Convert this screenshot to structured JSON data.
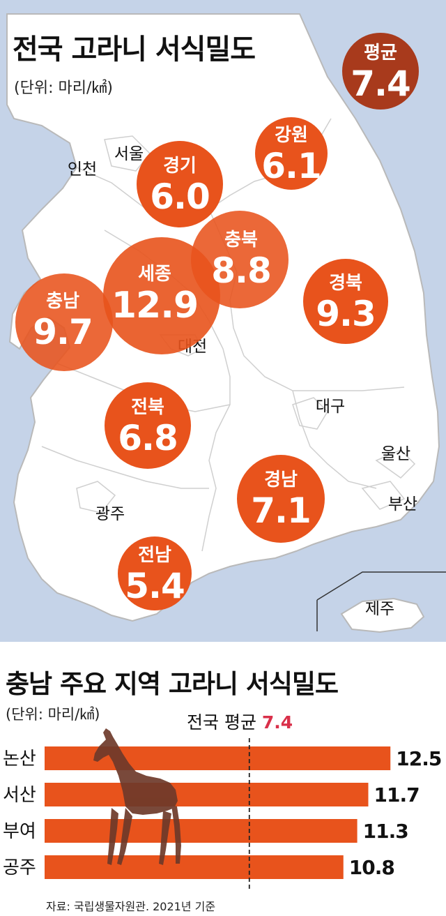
{
  "colors": {
    "sea": "#c5d3e8",
    "land": "#ffffff",
    "border": "#c9c9c9",
    "bubble": "#e8531c",
    "bubble_highlight": "#a83a1c",
    "bar": "#e8531c",
    "avg_accent": "#d9304a",
    "deer": "#6e3a2a"
  },
  "map": {
    "title": "전국 고라니 서식밀도",
    "unit": "(단위: 마리/㎢)",
    "cities": [
      "서울",
      "인천",
      "대전",
      "대구",
      "울산",
      "부산",
      "광주",
      "제주"
    ],
    "regions": [
      {
        "name": "평균",
        "value": "7.4"
      },
      {
        "name": "강원",
        "value": "6.1"
      },
      {
        "name": "경기",
        "value": "6.0"
      },
      {
        "name": "충북",
        "value": "8.8"
      },
      {
        "name": "세종",
        "value": "12.9"
      },
      {
        "name": "충남",
        "value": "9.7"
      },
      {
        "name": "경북",
        "value": "9.3"
      },
      {
        "name": "전북",
        "value": "6.8"
      },
      {
        "name": "경남",
        "value": "7.1"
      },
      {
        "name": "전남",
        "value": "5.4"
      }
    ]
  },
  "bars": {
    "title": "충남 주요 지역 고라니 서식밀도",
    "unit": "(단위: 마리/㎢)",
    "average_label": "전국 평균",
    "average_value": "7.4",
    "source": "자료: 국립생물자원관. 2021년 기준"
  },
  "chart_data": [
    {
      "type": "bubble-map",
      "title": "전국 고라니 서식밀도",
      "unit": "(단위: 마리/㎢)",
      "categories": [
        "평균",
        "강원",
        "경기",
        "충북",
        "세종",
        "충남",
        "경북",
        "전북",
        "경남",
        "전남"
      ],
      "values": [
        7.4,
        6.1,
        6.0,
        8.8,
        12.9,
        9.7,
        9.3,
        6.8,
        7.1,
        5.4
      ]
    },
    {
      "type": "bar",
      "orientation": "horizontal",
      "title": "충남 주요 지역 고라니 서식밀도",
      "unit": "(단위: 마리/㎢)",
      "categories": [
        "논산",
        "서산",
        "부여",
        "공주"
      ],
      "values": [
        12.5,
        11.7,
        11.3,
        10.8
      ],
      "reference_line": {
        "label": "전국 평균",
        "value": 7.4
      },
      "source": "자료: 국립생물자원관. 2021년 기준"
    }
  ]
}
